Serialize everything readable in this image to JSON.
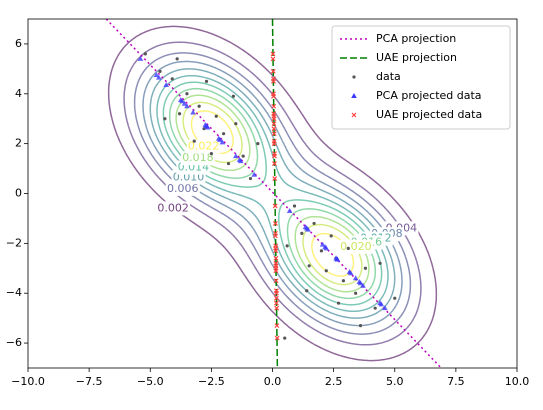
{
  "chart_data": {
    "type": "scatter",
    "xlim": [
      -10,
      10
    ],
    "ylim": [
      -7,
      7
    ],
    "xticks": [
      {
        "value": -10,
        "label": "−10.0"
      },
      {
        "value": -7.5,
        "label": "−7.5"
      },
      {
        "value": -5,
        "label": "−5.0"
      },
      {
        "value": -2.5,
        "label": "−2.5"
      },
      {
        "value": 0,
        "label": "0.0"
      },
      {
        "value": 2.5,
        "label": "2.5"
      },
      {
        "value": 5,
        "label": "5.0"
      },
      {
        "value": 7.5,
        "label": "7.5"
      },
      {
        "value": 10,
        "label": "10.0"
      }
    ],
    "yticks": [
      {
        "value": -6,
        "label": "−6"
      },
      {
        "value": -4,
        "label": "−4"
      },
      {
        "value": -2,
        "label": "−2"
      },
      0,
      2,
      4,
      6
    ],
    "legend": "upper right",
    "colormap": "viridis",
    "contour_levels": [
      0.002,
      0.004,
      0.006,
      0.008,
      0.01,
      0.012,
      0.014,
      0.016,
      0.018,
      0.02,
      0.022
    ],
    "contour_level_labels": [
      "0.002",
      "0.004",
      "0.006",
      "0.008",
      "0.010",
      "0.012",
      "0.014",
      "0.016",
      "0.018",
      "0.020",
      "0.022"
    ],
    "series": [
      {
        "name": "PCA projection",
        "type": "line",
        "linestyle": "dotted",
        "color": "#bf00bf",
        "x": [
          -6.8,
          6.9
        ],
        "values": [
          7,
          -7
        ]
      },
      {
        "name": "UAE projection",
        "type": "line",
        "linestyle": "dashed",
        "color": "#008000",
        "x": [
          0.0,
          0.2
        ],
        "values": [
          7,
          -7
        ]
      },
      {
        "name": "data",
        "type": "scatter",
        "marker": "dot",
        "color": "#555555",
        "x": [
          -5.2,
          -4.6,
          -4.1,
          -3.8,
          -3.5,
          -3.2,
          -3.0,
          -2.8,
          -2.5,
          -2.3,
          -2.0,
          -1.8,
          -1.5,
          -1.2,
          -0.9,
          -4.4,
          -1.6,
          -3.9,
          -0.6,
          -2.7,
          5.0,
          4.2,
          3.8,
          3.4,
          3.1,
          2.9,
          2.6,
          2.4,
          2.2,
          2.0,
          1.7,
          1.5,
          1.2,
          0.9,
          4.4,
          1.4,
          3.6,
          0.6,
          2.7,
          0.5
        ],
        "values": [
          5.6,
          4.9,
          4.6,
          3.2,
          4.0,
          2.1,
          3.5,
          2.6,
          1.6,
          3.1,
          2.4,
          1.2,
          2.8,
          1.5,
          0.6,
          3.0,
          3.9,
          5.4,
          2.0,
          4.5,
          -4.2,
          -4.6,
          -3.0,
          -4.0,
          -2.2,
          -3.5,
          -2.6,
          -1.7,
          -3.1,
          -2.3,
          -1.2,
          -2.9,
          -1.6,
          -0.5,
          -2.8,
          -3.9,
          -5.3,
          -2.1,
          -4.4,
          -5.8
        ]
      },
      {
        "name": "PCA projected data",
        "type": "scatter",
        "marker": "triangle",
        "color": "#3b3bff",
        "x": [
          -5.4,
          -4.75,
          -4.35,
          -3.5,
          -3.75,
          -2.65,
          -3.25,
          -2.7,
          -2.05,
          -2.7,
          -2.2,
          -1.5,
          -2.15,
          -1.35,
          -0.75,
          -3.7,
          -2.75,
          -4.65,
          -1.3,
          -3.6,
          4.6,
          4.4,
          3.4,
          3.7,
          2.65,
          3.2,
          2.6,
          2.05,
          2.65,
          2.15,
          1.45,
          2.2,
          1.4,
          0.7,
          3.6,
          2.65,
          4.45,
          1.35,
          3.55,
          3.15
        ],
        "values": [
          5.4,
          4.75,
          4.35,
          3.5,
          3.75,
          2.65,
          3.25,
          2.7,
          2.05,
          2.7,
          2.2,
          1.5,
          2.15,
          1.35,
          0.75,
          3.7,
          2.75,
          4.65,
          1.3,
          3.6,
          -4.6,
          -4.4,
          -3.4,
          -3.7,
          -2.65,
          -3.2,
          -2.6,
          -2.05,
          -2.65,
          -2.15,
          -1.45,
          -2.2,
          -1.4,
          -0.7,
          -3.6,
          -2.65,
          -4.45,
          -1.35,
          -3.55,
          -3.15
        ]
      },
      {
        "name": "UAE projected data",
        "type": "scatter",
        "marker": "x",
        "color": "#ff4040",
        "x": [
          0.02,
          0.03,
          0.04,
          0.05,
          0.04,
          0.07,
          0.05,
          0.06,
          0.08,
          0.06,
          0.07,
          0.08,
          0.06,
          0.08,
          0.09,
          0.06,
          0.04,
          0.02,
          0.07,
          0.04,
          0.16,
          0.17,
          0.14,
          0.16,
          0.13,
          0.15,
          0.14,
          0.12,
          0.14,
          0.13,
          0.12,
          0.14,
          0.12,
          0.11,
          0.14,
          0.16,
          0.18,
          0.13,
          0.16,
          0.19
        ],
        "values": [
          5.6,
          4.9,
          4.6,
          3.2,
          4.0,
          2.1,
          3.5,
          2.6,
          1.6,
          3.1,
          2.4,
          1.2,
          2.8,
          1.5,
          0.6,
          3.0,
          3.9,
          5.4,
          2.0,
          4.5,
          -4.2,
          -4.6,
          -3.0,
          -4.0,
          -2.2,
          -3.5,
          -2.6,
          -1.7,
          -3.1,
          -2.3,
          -1.2,
          -2.9,
          -1.6,
          -0.5,
          -2.8,
          -3.9,
          -5.3,
          -2.1,
          -4.4,
          -5.8
        ]
      }
    ]
  }
}
